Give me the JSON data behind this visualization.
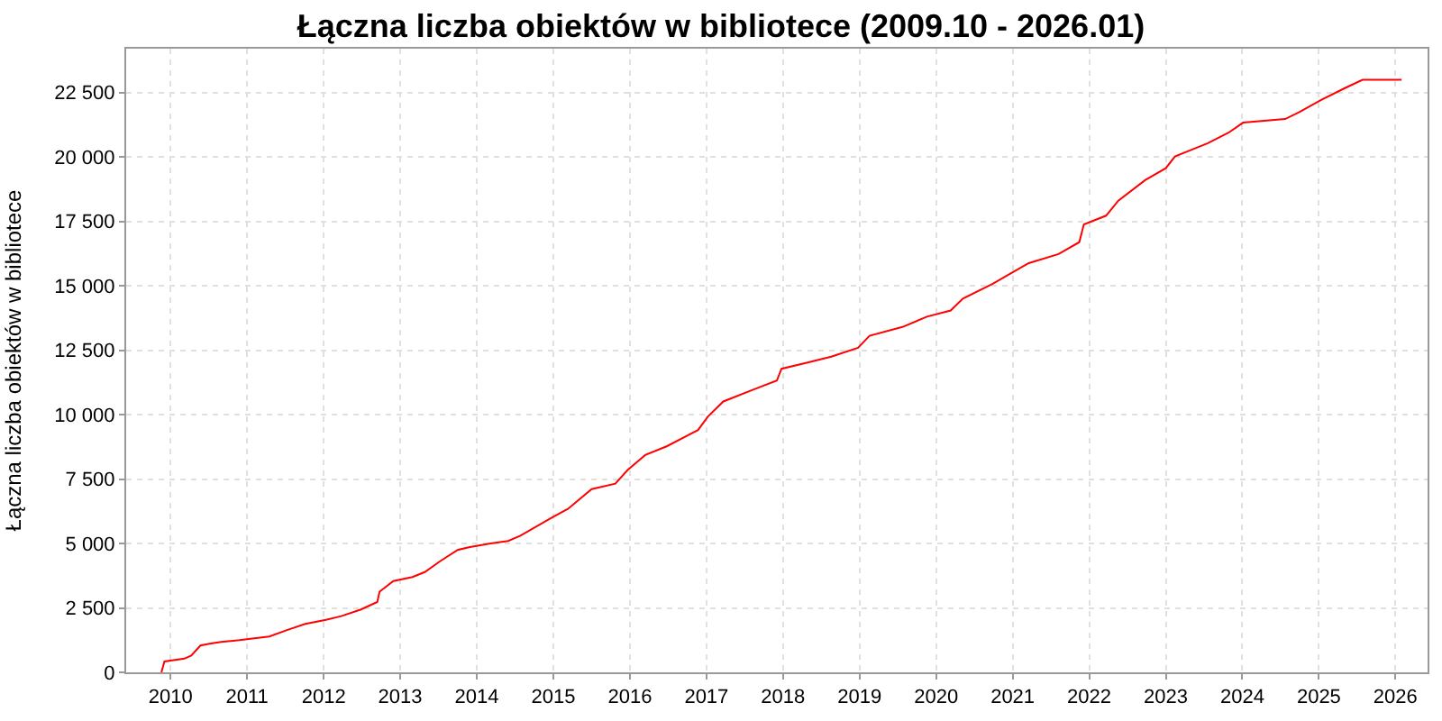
{
  "chart_data": {
    "type": "line",
    "title": "Łączna liczba obiektów w bibliotece (2009.10 - 2026.01)",
    "ylabel": "Łączna liczba obiektów w bibliotece",
    "x": [
      2009.88,
      2009.92,
      2010.18,
      2010.27,
      2010.39,
      2010.51,
      2010.66,
      2010.9,
      2011.29,
      2011.52,
      2011.76,
      2012.03,
      2012.23,
      2012.48,
      2012.7,
      2012.73,
      2012.91,
      2013.16,
      2013.32,
      2013.52,
      2013.75,
      2013.91,
      2014.18,
      2014.41,
      2014.57,
      2015.0,
      2015.19,
      2015.5,
      2015.81,
      2015.97,
      2016.2,
      2016.48,
      2016.89,
      2017.02,
      2017.22,
      2017.61,
      2017.92,
      2017.98,
      2018.31,
      2018.63,
      2018.98,
      2019.13,
      2019.56,
      2019.88,
      2020.19,
      2020.35,
      2020.74,
      2021.01,
      2021.21,
      2021.6,
      2021.87,
      2021.93,
      2022.22,
      2022.38,
      2022.73,
      2023.0,
      2023.12,
      2023.55,
      2023.82,
      2024.01,
      2024.56,
      2024.75,
      2025.03,
      2025.34,
      2025.57,
      2026.08
    ],
    "series": [
      {
        "color": "#ff0000",
        "values": [
          0,
          420,
          530,
          650,
          1040,
          1110,
          1180,
          1250,
          1390,
          1640,
          1880,
          2040,
          2180,
          2430,
          2730,
          3130,
          3540,
          3700,
          3890,
          4310,
          4750,
          4860,
          5000,
          5100,
          5300,
          6040,
          6340,
          7110,
          7320,
          7850,
          8430,
          8770,
          9400,
          9930,
          10510,
          10970,
          11320,
          11780,
          12010,
          12250,
          12590,
          13060,
          13400,
          13800,
          14040,
          14500,
          15080,
          15540,
          15880,
          16230,
          16690,
          17380,
          17720,
          18300,
          19100,
          19560,
          20020,
          20530,
          20940,
          21330,
          21470,
          21750,
          22210,
          22670,
          22990,
          22990
        ]
      }
    ],
    "xlim": [
      2009.42,
      2026.42
    ],
    "xticks": [
      2010,
      2011,
      2012,
      2013,
      2014,
      2015,
      2016,
      2017,
      2018,
      2019,
      2020,
      2021,
      2022,
      2023,
      2024,
      2025,
      2026
    ],
    "ylim": [
      0,
      24200
    ],
    "yticks": [
      0,
      {
        "value": 2500,
        "label": "2 500"
      },
      {
        "value": 5000,
        "label": "5 000"
      },
      {
        "value": 7500,
        "label": "7 500"
      },
      {
        "value": 10000,
        "label": "10 000"
      },
      {
        "value": 12500,
        "label": "12 500"
      },
      {
        "value": 15000,
        "label": "15 000"
      },
      {
        "value": 17500,
        "label": "17 500"
      },
      {
        "value": 20000,
        "label": "20 000"
      },
      {
        "value": 22500,
        "label": "22 500"
      }
    ],
    "grid": true,
    "marker": "none",
    "line_style": "solid"
  }
}
